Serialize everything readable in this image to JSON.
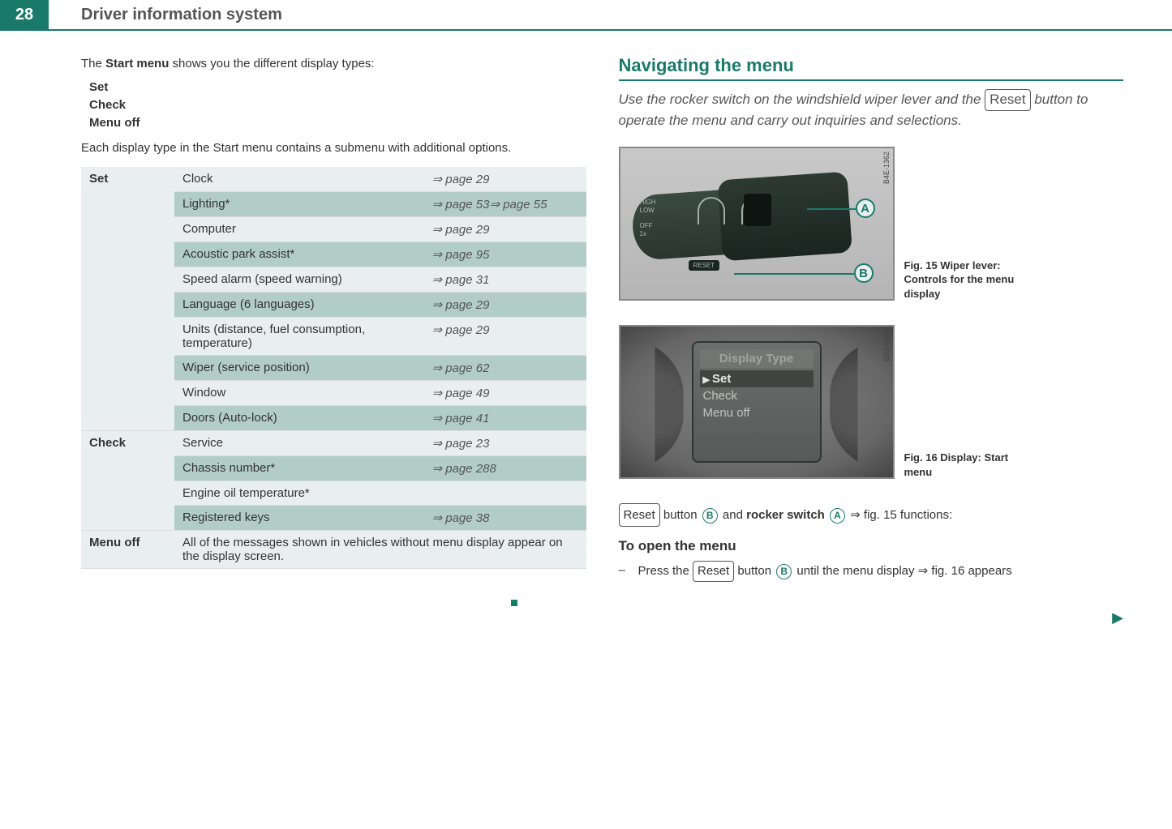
{
  "page_number": "28",
  "page_title": "Driver information system",
  "left": {
    "intro_prefix": "The ",
    "intro_bold": "Start menu",
    "intro_suffix": " shows you the different display types:",
    "menu_items": [
      "Set",
      "Check",
      "Menu off"
    ],
    "intro2": "Each display type in the Start menu contains a submenu with additional options.",
    "table": {
      "groups": [
        {
          "cat": "Set",
          "rows": [
            {
              "label": "Clock",
              "ref": "⇒ page 29",
              "tint": false
            },
            {
              "label": "Lighting*",
              "ref": "⇒ page 53⇒ page 55",
              "tint": true
            },
            {
              "label": "Computer",
              "ref": "⇒ page 29",
              "tint": false
            },
            {
              "label": "Acoustic park assist*",
              "ref": "⇒ page 95",
              "tint": true
            },
            {
              "label": "Speed alarm (speed warning)",
              "ref": "⇒ page 31",
              "tint": false
            },
            {
              "label": "Language (6 languages)",
              "ref": "⇒ page 29",
              "tint": true
            },
            {
              "label": "Units (distance, fuel consumption, temperature)",
              "ref": "⇒ page 29",
              "tint": false
            },
            {
              "label": "Wiper (service position)",
              "ref": "⇒ page 62",
              "tint": true
            },
            {
              "label": "Window",
              "ref": "⇒ page 49",
              "tint": false
            },
            {
              "label": "Doors (Auto-lock)",
              "ref": "⇒ page 41",
              "tint": true
            }
          ]
        },
        {
          "cat": "Check",
          "rows": [
            {
              "label": "Service",
              "ref": "⇒ page 23",
              "tint": false
            },
            {
              "label": "Chassis number*",
              "ref": "⇒ page 288",
              "tint": true
            },
            {
              "label": "Engine oil temperature*",
              "ref": "",
              "tint": false
            },
            {
              "label": "Registered keys",
              "ref": "⇒ page 38",
              "tint": true
            }
          ]
        },
        {
          "cat": "Menu off",
          "rows": [
            {
              "label": "All of the messages shown in vehicles without menu display appear on the display screen.",
              "ref": "",
              "tint": false,
              "span": true
            }
          ]
        }
      ]
    }
  },
  "right": {
    "heading": "Navigating the menu",
    "subtitle_pre": "Use the rocker switch on the windshield wiper lever and the ",
    "subtitle_btn": "Reset",
    "subtitle_post": " button to operate the menu and carry out inquiries and selections.",
    "fig1": {
      "code": "B4E-1362",
      "callout_a": "A",
      "callout_b": "B",
      "reset_label": "RESET",
      "hl": "HIGH\nLOW\n\nOFF\n1x",
      "caption": "Fig. 15  Wiper lever: Controls for the menu display"
    },
    "fig2": {
      "code": "B8J-0459",
      "screen_title": "Display Type",
      "screen_items": [
        "Set",
        "Check",
        "Menu off"
      ],
      "caption": "Fig. 16  Display: Start menu"
    },
    "line1_btn": "Reset",
    "line1_txt1": " button ",
    "line1_b": "B",
    "line1_txt2": " and ",
    "line1_bold": "rocker switch",
    "line1_a": "A",
    "line1_txt3": " ⇒ fig. 15 functions:",
    "subheading": "To open the menu",
    "instr_pre": "Press the ",
    "instr_btn": "Reset",
    "instr_mid": " button ",
    "instr_b": "B",
    "instr_post": " until the menu display ⇒ fig. 16 appears"
  }
}
